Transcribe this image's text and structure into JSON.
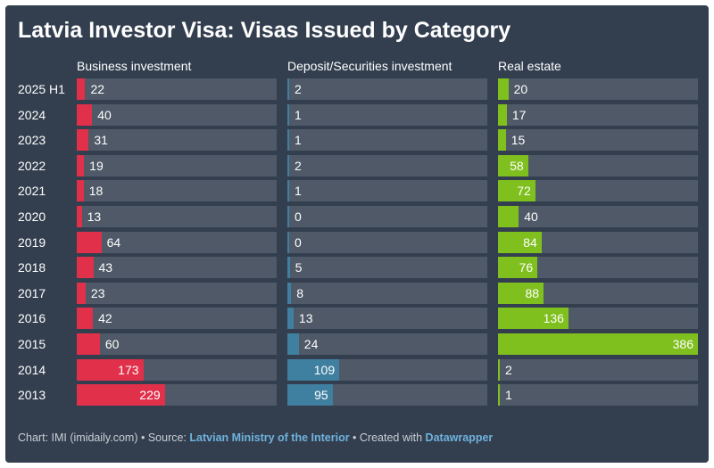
{
  "title": "Latvia Investor Visa: Visas Issued by Category",
  "chart_data": {
    "type": "bar",
    "orientation": "horizontal",
    "layout": "small-multiples",
    "title": "Latvia Investor Visa: Visas Issued by Category",
    "categories": [
      "2025 H1",
      "2024",
      "2023",
      "2022",
      "2021",
      "2020",
      "2019",
      "2018",
      "2017",
      "2016",
      "2015",
      "2014",
      "2013"
    ],
    "series": [
      {
        "name": "Business investment",
        "color": "#e0304a",
        "xlim": [
          0,
          520
        ],
        "values": [
          22,
          40,
          31,
          19,
          18,
          13,
          64,
          43,
          23,
          42,
          60,
          173,
          229
        ]
      },
      {
        "name": "Deposit/Securities investment",
        "color": "#3f7fa0",
        "xlim": [
          0,
          420
        ],
        "values": [
          2,
          1,
          1,
          2,
          1,
          0,
          0,
          5,
          8,
          13,
          24,
          109,
          95
        ]
      },
      {
        "name": "Real estate",
        "color": "#7fbf1e",
        "xlim": [
          0,
          386
        ],
        "values": [
          20,
          17,
          15,
          58,
          72,
          40,
          84,
          76,
          88,
          136,
          386,
          2,
          1
        ]
      }
    ]
  },
  "footer": {
    "prefix": "Chart: IMI (imidaily.com) • Source: ",
    "source_link": "Latvian Ministry of the Interior",
    "middle": " • Created with ",
    "tool_link": "Datawrapper"
  }
}
